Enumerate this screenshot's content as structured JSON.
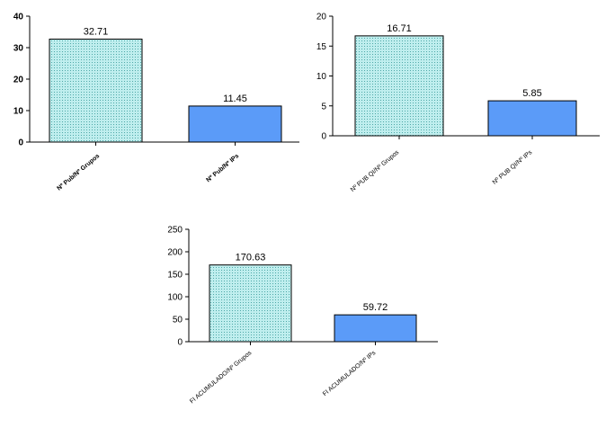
{
  "chart_data": [
    {
      "type": "bar",
      "categories": [
        "Nº Pub/Nº Grupos",
        "Nº Pub/Nº IPs"
      ],
      "values": [
        32.71,
        11.45
      ],
      "value_labels": [
        "32.71",
        "11.45"
      ],
      "ylim": [
        0,
        40
      ],
      "yticks": [
        0,
        10,
        20,
        30,
        40
      ],
      "title": "",
      "xlabel": "",
      "ylabel": "",
      "bar_styles": [
        "dotted-teal",
        "solid-blue"
      ]
    },
    {
      "type": "bar",
      "categories": [
        "Nº PUB QI/Nº Grupos",
        "Nº PUB QI/Nº IPs"
      ],
      "values": [
        16.71,
        5.85
      ],
      "value_labels": [
        "16.71",
        "5.85"
      ],
      "ylim": [
        0,
        20
      ],
      "yticks": [
        0,
        5,
        10,
        15,
        20
      ],
      "title": "",
      "xlabel": "",
      "ylabel": "",
      "bar_styles": [
        "dotted-teal",
        "solid-blue"
      ]
    },
    {
      "type": "bar",
      "categories": [
        "FI ACUMULADO/Nº Grupos",
        "FI ACUMULADO/Nº IPs"
      ],
      "values": [
        170.63,
        59.72
      ],
      "value_labels": [
        "170.63",
        "59.72"
      ],
      "ylim": [
        0,
        250
      ],
      "yticks": [
        0,
        50,
        100,
        150,
        200,
        250
      ],
      "title": "",
      "xlabel": "",
      "ylabel": "",
      "bar_styles": [
        "dotted-teal",
        "solid-blue"
      ]
    }
  ],
  "colors": {
    "blue_bar": "#5b9bf8",
    "dot_fill": "#b9ecec",
    "dot": "#4fa8a8",
    "axis": "#000000"
  }
}
